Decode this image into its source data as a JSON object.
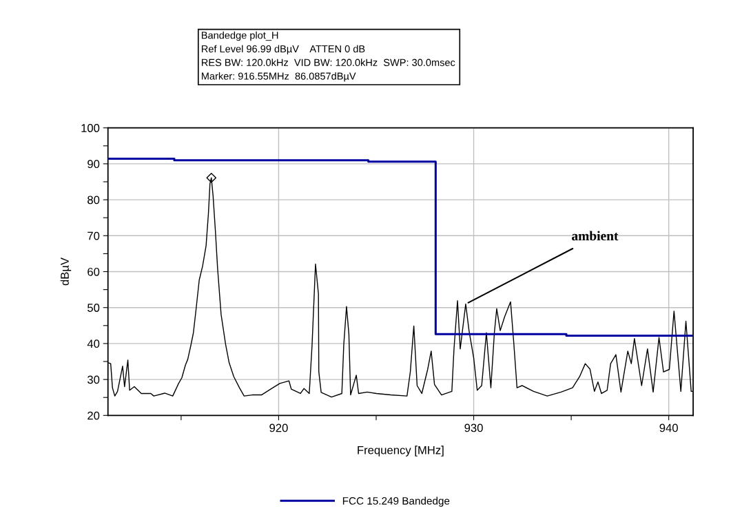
{
  "chart_data": {
    "type": "line",
    "xlabel": "Frequency [MHz]",
    "ylabel": "dBµV",
    "annotations": [
      "Bandedge plot_H",
      "Ref Level 96.99 dBµV    ATTEN 0 dB",
      "RES BW: 120.0kHz  VID BW: 120.0kHz  SWP: 30.0msec",
      "Marker: 916.55MHz  86.0857dBµV",
      {
        "text": "ambient",
        "x": 929.59,
        "y": 51
      }
    ],
    "xlim": [
      911.25,
      941.25
    ],
    "ylim": [
      20,
      100
    ],
    "xticks": [
      {
        "value": 915,
        "label": null
      },
      920,
      {
        "value": 925,
        "label": null
      },
      930,
      {
        "value": 935,
        "label": null
      },
      940
    ],
    "yticks": [
      20,
      {
        "value": 25,
        "label": null
      },
      30,
      {
        "value": 35,
        "label": null
      },
      40,
      {
        "value": 45,
        "label": null
      },
      50,
      {
        "value": 55,
        "label": null
      },
      60,
      {
        "value": 65,
        "label": null
      },
      70,
      {
        "value": 75,
        "label": null
      },
      80,
      {
        "value": 85,
        "label": null
      },
      90,
      {
        "value": 95,
        "label": null
      },
      100
    ],
    "grid": true,
    "legend": "bottom",
    "series": [
      {
        "color": "#000000",
        "marker": "none",
        "x": [
          911.25,
          911.39,
          911.48,
          911.6,
          911.74,
          912.0,
          912.1,
          912.27,
          912.36,
          912.6,
          912.96,
          913.45,
          913.6,
          914.16,
          914.57,
          914.87,
          915.04,
          915.22,
          915.34,
          915.5,
          915.63,
          915.75,
          915.93,
          916.1,
          916.28,
          916.4,
          916.48,
          916.55,
          916.64,
          916.76,
          916.87,
          917.05,
          917.28,
          917.46,
          917.7,
          917.99,
          918.23,
          918.64,
          919.12,
          919.59,
          920.06,
          920.53,
          920.65,
          921.12,
          921.3,
          921.57,
          921.71,
          921.89,
          922.04,
          922.06,
          922.18,
          922.71,
          923.24,
          923.34,
          923.48,
          923.6,
          923.69,
          923.98,
          924.1,
          924.54,
          925.02,
          925.75,
          926.58,
          926.75,
          926.93,
          927.1,
          927.34,
          927.64,
          927.82,
          927.99,
          928.35,
          928.88,
          928.99,
          929.17,
          929.31,
          929.59,
          929.76,
          930.0,
          930.18,
          930.41,
          930.65,
          930.88,
          931.06,
          931.18,
          931.36,
          931.59,
          931.89,
          932.06,
          932.22,
          932.48,
          933.07,
          933.77,
          934.48,
          935.07,
          935.43,
          935.72,
          935.96,
          936.19,
          936.37,
          936.55,
          936.84,
          937.02,
          937.29,
          937.55,
          937.9,
          938.08,
          938.24,
          938.61,
          938.91,
          939.2,
          939.5,
          939.73,
          940.03,
          940.27,
          940.62,
          940.88,
          941.15,
          941.25
        ],
        "values": [
          34.7,
          34.4,
          27.7,
          25.4,
          26.7,
          33.7,
          28,
          35.4,
          27,
          28,
          26.1,
          26.1,
          25.4,
          26.2,
          25.4,
          28.9,
          30.5,
          34,
          35.6,
          39.5,
          43,
          48.7,
          57.7,
          61.5,
          67.2,
          76.2,
          84.5,
          86.1,
          81,
          71.1,
          60.9,
          48.1,
          39.8,
          34.7,
          30.8,
          27.7,
          25.4,
          25.7,
          25.7,
          27.3,
          28.9,
          29.6,
          27.3,
          26.1,
          27.5,
          26.1,
          39.2,
          62.1,
          53.8,
          32.1,
          26.4,
          25.1,
          26.1,
          39.8,
          50.3,
          42.7,
          25.7,
          31.2,
          26.1,
          26.5,
          26.1,
          25.7,
          25.4,
          32.1,
          44.9,
          28.3,
          26.1,
          32.8,
          37.9,
          28.6,
          25.7,
          26.7,
          38.5,
          51.9,
          38.5,
          51,
          43.6,
          36,
          27,
          28.3,
          43,
          27.7,
          43,
          49.7,
          43.6,
          47.5,
          51.6,
          39.8,
          27.7,
          28.3,
          26.7,
          25.4,
          26.5,
          27.7,
          30.8,
          34.4,
          32.9,
          26.7,
          29.3,
          26.1,
          27,
          34.4,
          36.9,
          26.5,
          37.9,
          34.4,
          41.4,
          28.3,
          38.5,
          26.5,
          41.7,
          32.1,
          32.8,
          49,
          26.7,
          46.2,
          26.7,
          26.7
        ]
      },
      {
        "type": "scatter",
        "marker": "diamond",
        "color": "#000000",
        "x": [
          916.55
        ],
        "values": [
          86.1
        ]
      },
      {
        "name": "FCC 15.249 Bandedge",
        "color": "#0000a0",
        "marker": "none",
        "x": [
          911.25,
          914.65,
          914.65,
          924.6,
          924.6,
          928.05,
          928.05,
          934.75,
          934.75,
          941.25
        ],
        "values": [
          91.4,
          91.4,
          91,
          91,
          90.6,
          90.6,
          42.6,
          42.6,
          42.2,
          42.2
        ]
      }
    ]
  }
}
